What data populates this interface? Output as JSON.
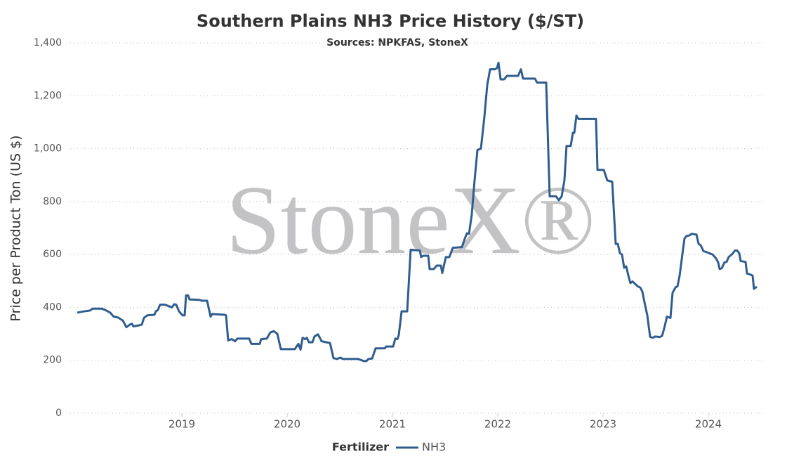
{
  "chart_data": {
    "type": "line",
    "title": "Southern Plains NH3 Price History ($/ST)",
    "subtitle": "Sources: NPKFAS, StoneX",
    "watermark": "StoneX®",
    "y_label": "Price per Product Ton (US $)",
    "legend_title": "Fertilizer",
    "legend_position": "bottom",
    "grid": true,
    "xlim": [
      2017.94,
      2024.54
    ],
    "xticks": [
      2019,
      2020,
      2021,
      2022,
      2023,
      2024
    ],
    "ylim": [
      0,
      1400
    ],
    "yticks": [
      0,
      200,
      400,
      600,
      800,
      {
        "value": 1000,
        "label": "1,000"
      },
      {
        "value": 1200,
        "label": "1,200"
      },
      {
        "value": 1400,
        "label": "1,400"
      }
    ],
    "x": [
      2018.007,
      2018.073,
      2018.127,
      2018.153,
      2018.24,
      2018.273,
      2018.32,
      2018.353,
      2018.393,
      2018.44,
      2018.473,
      2018.507,
      2018.527,
      2018.54,
      2018.593,
      2018.62,
      2018.64,
      2018.673,
      2018.74,
      2018.753,
      2018.773,
      2018.793,
      2018.84,
      2018.873,
      2018.907,
      2018.927,
      2018.947,
      2018.973,
      2019.007,
      2019.027,
      2019.04,
      2019.06,
      2019.073,
      2019.173,
      2019.187,
      2019.24,
      2019.273,
      2019.287,
      2019.407,
      2019.42,
      2019.44,
      2019.473,
      2019.507,
      2019.527,
      2019.64,
      2019.66,
      2019.74,
      2019.753,
      2019.807,
      2019.84,
      2019.873,
      2019.907,
      2019.94,
      2020.073,
      2020.107,
      2020.127,
      2020.147,
      2020.173,
      2020.187,
      2020.207,
      2020.24,
      2020.26,
      2020.293,
      2020.327,
      2020.373,
      2020.407,
      2020.44,
      2020.473,
      2020.507,
      2020.527,
      2020.673,
      2020.707,
      2020.727,
      2020.753,
      2020.773,
      2020.807,
      2020.84,
      2020.927,
      2020.94,
      2021.007,
      2021.027,
      2021.047,
      2021.06,
      2021.087,
      2021.14,
      2021.173,
      2021.26,
      2021.273,
      2021.293,
      2021.34,
      2021.353,
      2021.393,
      2021.42,
      2021.46,
      2021.473,
      2021.507,
      2021.54,
      2021.573,
      2021.66,
      2021.687,
      2021.707,
      2021.727,
      2021.753,
      2021.78,
      2021.807,
      2021.84,
      2021.873,
      2021.9,
      2021.927,
      2021.973,
      2021.993,
      2022.007,
      2022.027,
      2022.06,
      2022.087,
      2022.193,
      2022.22,
      2022.24,
      2022.353,
      2022.373,
      2022.46,
      2022.493,
      2022.553,
      2022.58,
      2022.607,
      2022.633,
      2022.653,
      2022.693,
      2022.713,
      2022.727,
      2022.747,
      2022.767,
      2022.933,
      2022.947,
      2023.007,
      2023.04,
      2023.087,
      2023.12,
      2023.14,
      2023.16,
      2023.18,
      2023.2,
      2023.22,
      2023.24,
      2023.26,
      2023.28,
      2023.307,
      2023.327,
      2023.353,
      2023.373,
      2023.393,
      2023.42,
      2023.447,
      2023.473,
      2023.493,
      2023.54,
      2023.56,
      2023.58,
      2023.607,
      2023.64,
      2023.66,
      2023.687,
      2023.707,
      2023.727,
      2023.74,
      2023.753,
      2023.773,
      2023.793,
      2023.82,
      2023.84,
      2023.887,
      2023.907,
      2023.927,
      2023.953,
      2024.007,
      2024.04,
      2024.073,
      2024.093,
      2024.107,
      2024.127,
      2024.153,
      2024.173,
      2024.193,
      2024.227,
      2024.253,
      2024.273,
      2024.293,
      2024.307,
      2024.353,
      2024.367,
      2024.393,
      2024.42,
      2024.433,
      2024.46
    ],
    "series": [
      {
        "name": "NH3",
        "color": "#2f5d8f",
        "values": [
          380,
          385,
          388,
          395,
          395,
          390,
          380,
          365,
          362,
          350,
          325,
          335,
          338,
          328,
          332,
          335,
          360,
          370,
          372,
          385,
          390,
          410,
          410,
          405,
          400,
          412,
          410,
          385,
          370,
          370,
          445,
          445,
          430,
          428,
          425,
          425,
          365,
          375,
          372,
          370,
          275,
          280,
          272,
          282,
          282,
          262,
          262,
          280,
          282,
          305,
          310,
          300,
          242,
          242,
          262,
          240,
          285,
          280,
          285,
          268,
          268,
          290,
          298,
          272,
          268,
          265,
          208,
          205,
          210,
          205,
          205,
          200,
          197,
          197,
          205,
          207,
          245,
          245,
          252,
          252,
          282,
          280,
          295,
          385,
          385,
          618,
          615,
          590,
          595,
          595,
          545,
          545,
          558,
          558,
          530,
          590,
          590,
          625,
          628,
          660,
          680,
          678,
          750,
          880,
          995,
          1000,
          1120,
          1240,
          1300,
          1300,
          1305,
          1325,
          1262,
          1262,
          1275,
          1275,
          1300,
          1265,
          1265,
          1250,
          1250,
          820,
          820,
          805,
          820,
          880,
          1010,
          1010,
          1060,
          1060,
          1125,
          1112,
          1112,
          920,
          920,
          880,
          875,
          640,
          640,
          605,
          600,
          550,
          555,
          520,
          492,
          498,
          488,
          480,
          475,
          460,
          420,
          370,
          288,
          285,
          290,
          288,
          292,
          320,
          365,
          360,
          455,
          475,
          480,
          520,
          560,
          600,
          660,
          670,
          672,
          678,
          675,
          640,
          635,
          613,
          605,
          600,
          585,
          570,
          545,
          548,
          570,
          572,
          590,
          602,
          615,
          615,
          605,
          575,
          572,
          528,
          525,
          520,
          470,
          478
        ]
      }
    ]
  }
}
